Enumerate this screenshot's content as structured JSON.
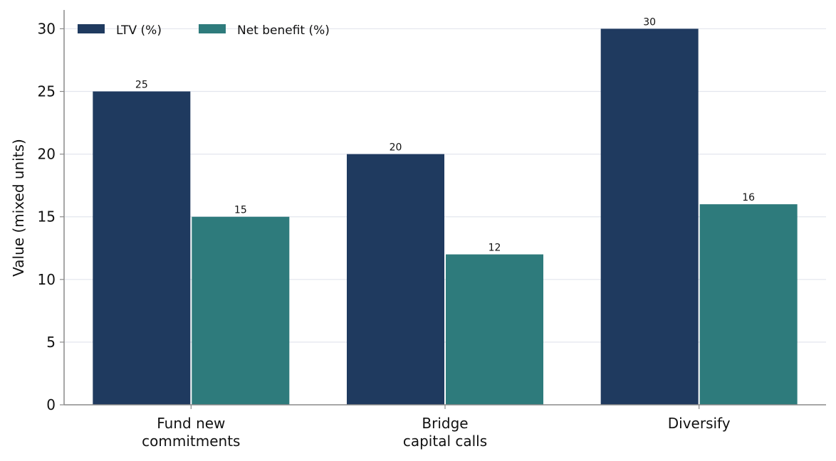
{
  "chart_data": {
    "type": "bar",
    "title": "",
    "xlabel": "",
    "ylabel": "Value (mixed units)",
    "categories": [
      [
        "Fund new",
        "commitments"
      ],
      [
        "Bridge",
        "capital calls"
      ],
      [
        "Diversify"
      ]
    ],
    "series": [
      {
        "name": "LTV (%)",
        "values": [
          25,
          20,
          30
        ],
        "color": "#1f3a5f"
      },
      {
        "name": "Net benefit (%)",
        "values": [
          15,
          12,
          16
        ],
        "color": "#2e7b7c"
      }
    ],
    "ylim": [
      0,
      31.5
    ],
    "yticks": [
      0,
      5,
      10,
      15,
      20,
      25,
      30
    ],
    "grid": "horizontal",
    "legend_position": "top-left",
    "data_labels": true
  }
}
